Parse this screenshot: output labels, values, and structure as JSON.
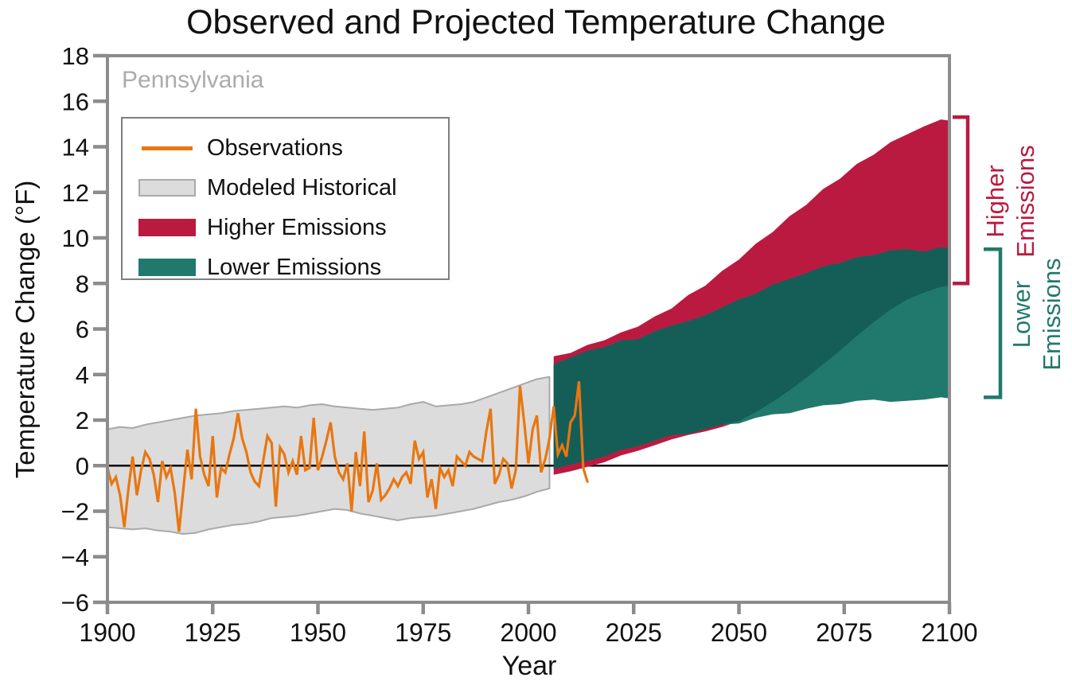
{
  "title": "Observed and Projected Temperature Change",
  "chart_data": {
    "type": "area",
    "title": "Observed and Projected Temperature Change",
    "region": "Pennsylvania",
    "xlabel": "Year",
    "ylabel": "Temperature Change (°F)",
    "x_axis": {
      "min": 1900,
      "max": 2100,
      "ticks": [
        1900,
        1925,
        1950,
        1975,
        2000,
        2025,
        2050,
        2075,
        2100
      ],
      "tick_labels": [
        "1900",
        "1925",
        "1950",
        "1975",
        "2000",
        "2025",
        "2050",
        "2075",
        "2100"
      ]
    },
    "y_axis": {
      "min": -6,
      "max": 18,
      "ticks": [
        -6,
        -4,
        -2,
        0,
        2,
        4,
        6,
        8,
        10,
        12,
        14,
        16,
        18
      ],
      "tick_labels": [
        "−6",
        "−4",
        "−2",
        "0",
        "2",
        "4",
        "6",
        "8",
        "10",
        "12",
        "14",
        "16",
        "18"
      ]
    },
    "grid": false,
    "legend_position": "upper-left",
    "legend": {
      "items": [
        {
          "label": "Observations",
          "type": "line",
          "color": "#E87711"
        },
        {
          "label": "Modeled Historical",
          "type": "fill",
          "color": "#DCDCDC",
          "border": "#A9A9A9"
        },
        {
          "label": "Higher Emissions",
          "type": "fill",
          "color": "#BB1A40"
        },
        {
          "label": "Lower Emissions",
          "type": "fill",
          "color": "#21796D"
        }
      ]
    },
    "colors": {
      "observations": "#E87711",
      "modeled_historical_fill": "#DCDCDC",
      "modeled_historical_edge": "#A9A9A9",
      "higher_emissions": "#BB1A40",
      "lower_emissions": "#21796D",
      "emissions_overlap": "#155E57",
      "zero_line": "#000000",
      "frame": "#8C8C8C",
      "region_label": "#ABABAB"
    },
    "series": {
      "observations": {
        "start_year": 1900,
        "end_year": 2014,
        "values_f": [
          -0.1,
          -0.8,
          -0.5,
          -1.3,
          -2.7,
          -1.0,
          0.4,
          -1.3,
          -0.2,
          0.6,
          0.3,
          -0.4,
          -1.6,
          0.2,
          -0.5,
          -0.1,
          -1.2,
          -2.9,
          -1.1,
          0.7,
          -0.6,
          2.5,
          0.4,
          -0.4,
          -0.9,
          1.3,
          -1.4,
          -0.1,
          -0.3,
          0.5,
          1.2,
          2.3,
          1.2,
          0.6,
          -0.3,
          -0.7,
          -0.9,
          0.2,
          1.3,
          1.0,
          -1.8,
          0.8,
          0.5,
          -0.3,
          0.2,
          -0.4,
          1.3,
          -0.2,
          -0.1,
          2.1,
          -0.2,
          0.4,
          1.1,
          1.9,
          0.4,
          -0.3,
          -0.6,
          0.1,
          -2.0,
          0.6,
          -0.9,
          1.5,
          -1.6,
          -1.1,
          0.1,
          -1.5,
          -1.3,
          -1.0,
          -0.6,
          -0.9,
          -0.5,
          -0.3,
          -0.8,
          1.1,
          0.3,
          0.6,
          -1.4,
          -0.6,
          -1.9,
          -0.1,
          -0.5,
          -0.2,
          -0.9,
          0.4,
          0.2,
          0.0,
          0.6,
          0.4,
          0.3,
          0.2,
          1.5,
          2.5,
          -0.8,
          -0.4,
          0.3,
          0.1,
          -1.0,
          -0.2,
          3.5,
          1.9,
          0.1,
          1.6,
          2.2,
          -0.3,
          0.3,
          1.2,
          2.6,
          0.5,
          0.9,
          0.4,
          1.9,
          2.2,
          3.7,
          -0.1,
          -0.7
        ]
      },
      "modeled_historical": {
        "years": [
          1900,
          1903,
          1906,
          1909,
          1912,
          1915,
          1918,
          1921,
          1924,
          1927,
          1930,
          1933,
          1936,
          1939,
          1942,
          1945,
          1948,
          1951,
          1954,
          1957,
          1960,
          1963,
          1966,
          1969,
          1972,
          1975,
          1978,
          1981,
          1984,
          1987,
          1990,
          1993,
          1996,
          1999,
          2002,
          2005
        ],
        "upper_f": [
          1.6,
          1.7,
          1.65,
          1.8,
          1.9,
          2.0,
          2.1,
          2.2,
          2.25,
          2.3,
          2.4,
          2.45,
          2.5,
          2.55,
          2.6,
          2.55,
          2.65,
          2.7,
          2.6,
          2.55,
          2.5,
          2.45,
          2.5,
          2.55,
          2.7,
          2.8,
          2.6,
          2.65,
          2.7,
          2.8,
          3.0,
          3.2,
          3.4,
          3.6,
          3.8,
          3.9
        ],
        "lower_f": [
          -2.7,
          -2.75,
          -2.8,
          -2.75,
          -2.85,
          -2.9,
          -3.0,
          -2.95,
          -2.8,
          -2.7,
          -2.6,
          -2.55,
          -2.45,
          -2.3,
          -2.25,
          -2.2,
          -2.1,
          -2.0,
          -1.9,
          -1.95,
          -2.1,
          -2.2,
          -2.3,
          -2.4,
          -2.3,
          -2.25,
          -2.2,
          -2.1,
          -2.0,
          -1.9,
          -1.75,
          -1.6,
          -1.5,
          -1.35,
          -1.15,
          -1.0
        ]
      },
      "projections": {
        "years": [
          2006,
          2010,
          2014,
          2018,
          2022,
          2026,
          2030,
          2034,
          2038,
          2042,
          2046,
          2050,
          2054,
          2058,
          2062,
          2066,
          2070,
          2074,
          2078,
          2082,
          2086,
          2090,
          2094,
          2098,
          2100
        ],
        "higher_emissions": {
          "upper_f": [
            4.8,
            4.95,
            5.3,
            5.5,
            5.85,
            6.1,
            6.55,
            6.9,
            7.5,
            7.9,
            8.55,
            9.05,
            9.75,
            10.25,
            10.95,
            11.45,
            12.15,
            12.6,
            13.25,
            13.65,
            14.2,
            14.55,
            14.9,
            15.2,
            15.15
          ],
          "lower_f": [
            -0.4,
            -0.25,
            -0.05,
            0.15,
            0.45,
            0.65,
            0.9,
            1.15,
            1.35,
            1.5,
            1.7,
            1.95,
            2.35,
            2.8,
            3.3,
            3.85,
            4.45,
            5.05,
            5.7,
            6.3,
            6.85,
            7.3,
            7.6,
            7.85,
            7.9
          ]
        },
        "lower_emissions": {
          "upper_f": [
            4.45,
            4.75,
            5.05,
            5.2,
            5.5,
            5.55,
            5.9,
            6.15,
            6.35,
            6.6,
            6.95,
            7.3,
            7.55,
            7.95,
            8.2,
            8.45,
            8.75,
            8.9,
            9.15,
            9.25,
            9.45,
            9.5,
            9.4,
            9.6,
            9.55
          ],
          "lower_f": [
            -0.15,
            0.05,
            0.2,
            0.4,
            0.7,
            0.85,
            1.1,
            1.35,
            1.4,
            1.6,
            1.8,
            1.85,
            2.1,
            2.25,
            2.3,
            2.5,
            2.65,
            2.7,
            2.85,
            2.9,
            2.8,
            2.85,
            2.9,
            3.0,
            2.95
          ]
        }
      }
    },
    "annotations": {
      "higher": {
        "label": "Higher\nEmissions",
        "color": "#BB1A40",
        "bracket_range_f": [
          8.0,
          15.3
        ]
      },
      "lower": {
        "label": "Lower\nEmissions",
        "color": "#21796D",
        "bracket_range_f": [
          3.0,
          9.5
        ]
      }
    }
  }
}
